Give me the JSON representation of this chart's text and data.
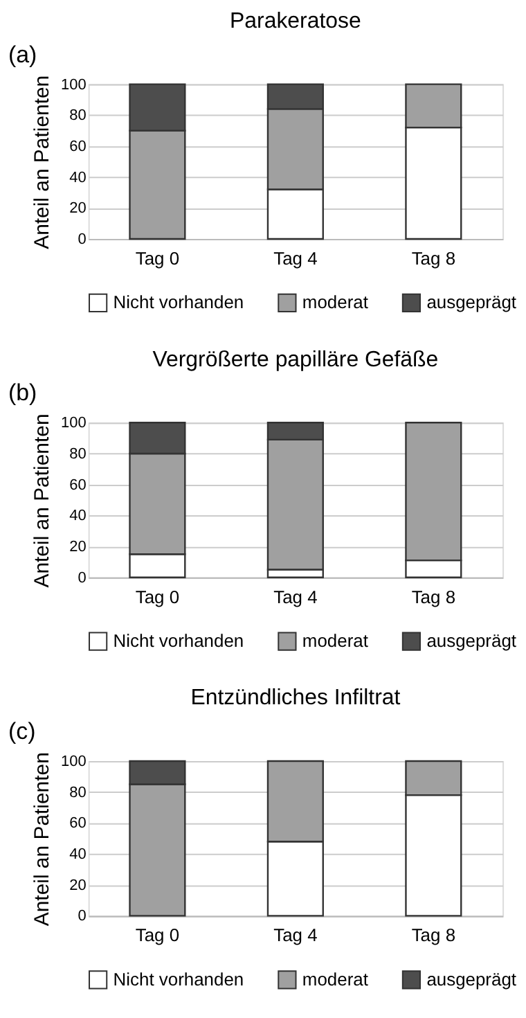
{
  "chart_data": [
    {
      "type": "bar",
      "stacked": true,
      "title": "Parakeratose",
      "annotations": [
        "(a)"
      ],
      "ylabel": "Anteil an Patienten",
      "categories": [
        "Tag 0",
        "Tag 4",
        "Tag 8"
      ],
      "ylim": [
        0,
        100
      ],
      "yticks": [
        0,
        20,
        40,
        60,
        80,
        100
      ],
      "grid": "y",
      "legend": "bottom",
      "series": [
        {
          "name": "Nicht vorhanden",
          "color": "#ffffff",
          "values": [
            0,
            32,
            72
          ]
        },
        {
          "name": "moderat",
          "color": "#a0a0a0",
          "values": [
            70,
            52,
            28
          ]
        },
        {
          "name": "ausgeprägt",
          "color": "#4d4d4d",
          "values": [
            30,
            16,
            0
          ]
        }
      ]
    },
    {
      "type": "bar",
      "stacked": true,
      "title": "Vergrößerte papilläre Gefäße",
      "annotations": [
        "(b)"
      ],
      "ylabel": "Anteil an Patienten",
      "categories": [
        "Tag 0",
        "Tag 4",
        "Tag 8"
      ],
      "ylim": [
        0,
        100
      ],
      "yticks": [
        0,
        20,
        40,
        60,
        80,
        100
      ],
      "grid": "y",
      "legend": "bottom",
      "series": [
        {
          "name": "Nicht vorhanden",
          "color": "#ffffff",
          "values": [
            15,
            5,
            11
          ]
        },
        {
          "name": "moderat",
          "color": "#a0a0a0",
          "values": [
            65,
            84,
            89
          ]
        },
        {
          "name": "ausgeprägt",
          "color": "#4d4d4d",
          "values": [
            20,
            11,
            0
          ]
        }
      ]
    },
    {
      "type": "bar",
      "stacked": true,
      "title": "Entzündliches Infiltrat",
      "annotations": [
        "(c)"
      ],
      "ylabel": "Anteil an Patienten",
      "categories": [
        "Tag 0",
        "Tag 4",
        "Tag 8"
      ],
      "ylim": [
        0,
        100
      ],
      "yticks": [
        0,
        20,
        40,
        60,
        80,
        100
      ],
      "grid": "y",
      "legend": "bottom",
      "series": [
        {
          "name": "Nicht vorhanden",
          "color": "#ffffff",
          "values": [
            0,
            48,
            78
          ]
        },
        {
          "name": "moderat",
          "color": "#a0a0a0",
          "values": [
            85,
            52,
            22
          ]
        },
        {
          "name": "ausgeprägt",
          "color": "#4d4d4d",
          "values": [
            15,
            0,
            0
          ]
        }
      ]
    }
  ]
}
